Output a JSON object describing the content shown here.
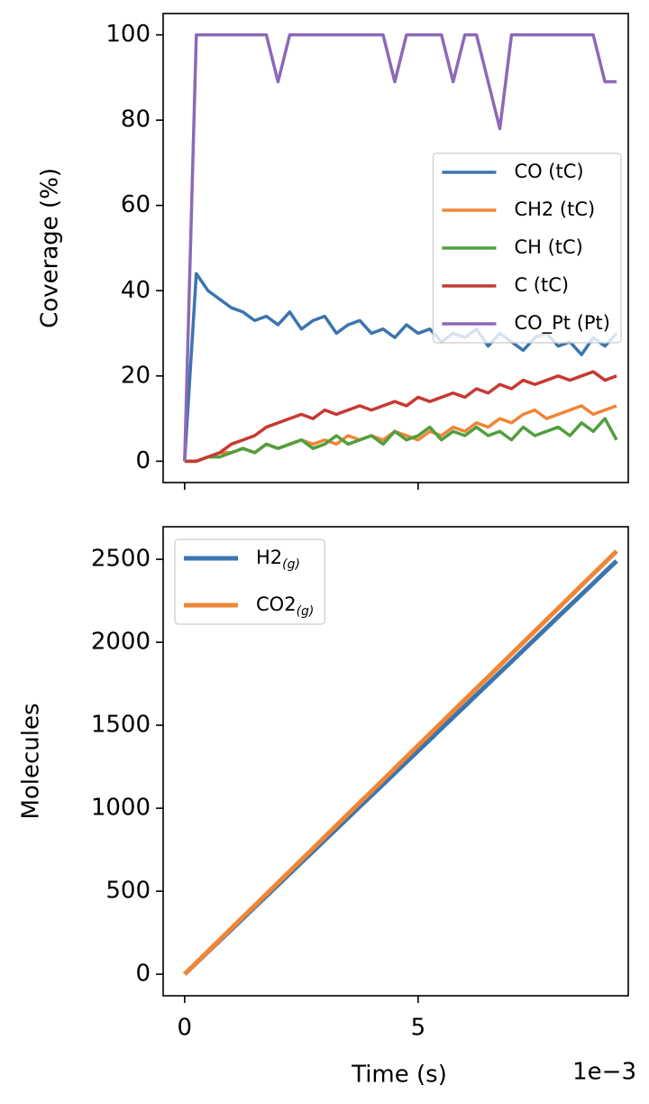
{
  "chart_data": [
    {
      "type": "line",
      "ylabel": "Coverage (%)",
      "x": [
        0,
        0.00025,
        0.0005,
        0.00075,
        0.001,
        0.00125,
        0.0015,
        0.00175,
        0.002,
        0.00225,
        0.0025,
        0.00275,
        0.003,
        0.00325,
        0.0035,
        0.00375,
        0.004,
        0.00425,
        0.0045,
        0.00475,
        0.005,
        0.00525,
        0.0055,
        0.00575,
        0.006,
        0.00625,
        0.0065,
        0.00675,
        0.007,
        0.00725,
        0.0075,
        0.00775,
        0.008,
        0.00825,
        0.0085,
        0.00875,
        0.009,
        0.00925
      ],
      "series": [
        {
          "name": "CO (tC)",
          "color": "#3b75af",
          "values": [
            0,
            44,
            40,
            38,
            36,
            35,
            33,
            34,
            32,
            35,
            31,
            33,
            34,
            30,
            32,
            33,
            30,
            31,
            29,
            32,
            30,
            31,
            28,
            30,
            29,
            31,
            27,
            30,
            28,
            26,
            29,
            30,
            27,
            28,
            25,
            29,
            27,
            30
          ]
        },
        {
          "name": "CH2 (tC)",
          "color": "#ef8636",
          "values": [
            0,
            0,
            1,
            2,
            2,
            3,
            2,
            4,
            3,
            4,
            5,
            4,
            5,
            4,
            6,
            5,
            6,
            5,
            7,
            6,
            5,
            7,
            6,
            8,
            7,
            9,
            8,
            10,
            9,
            11,
            12,
            10,
            11,
            12,
            13,
            11,
            12,
            13
          ]
        },
        {
          "name": "CH (tC)",
          "color": "#519e3e",
          "values": [
            0,
            0,
            1,
            1,
            2,
            3,
            2,
            4,
            3,
            4,
            5,
            3,
            4,
            6,
            4,
            5,
            6,
            4,
            7,
            5,
            6,
            8,
            5,
            7,
            6,
            8,
            6,
            7,
            5,
            8,
            6,
            7,
            8,
            6,
            9,
            7,
            10,
            5
          ]
        },
        {
          "name": "C (tC)",
          "color": "#c53a32",
          "values": [
            0,
            0,
            1,
            2,
            4,
            5,
            6,
            8,
            9,
            10,
            11,
            10,
            12,
            11,
            12,
            13,
            12,
            13,
            14,
            13,
            15,
            14,
            15,
            16,
            15,
            17,
            16,
            18,
            17,
            19,
            18,
            19,
            20,
            19,
            20,
            21,
            19,
            20
          ]
        },
        {
          "name": "CO_Pt (Pt)",
          "color": "#8d69b8",
          "values": [
            0,
            100,
            100,
            100,
            100,
            100,
            100,
            100,
            89,
            100,
            100,
            100,
            100,
            100,
            100,
            100,
            100,
            100,
            89,
            100,
            100,
            100,
            100,
            89,
            100,
            100,
            89,
            78,
            100,
            100,
            100,
            100,
            100,
            100,
            100,
            100,
            89,
            89
          ]
        }
      ],
      "xlim": [
        -0.00046,
        0.0095
      ],
      "xticks": [
        0,
        0.005
      ],
      "ylim": [
        -5,
        105
      ],
      "yticks": [
        0,
        20,
        40,
        60,
        80,
        100
      ],
      "legend": "center right",
      "line_width": 3.5
    },
    {
      "type": "line",
      "xlabel": "Time (s)",
      "ylabel": "Molecules",
      "x_offset_text": "1e−3",
      "x": [
        0,
        0.00025,
        0.0005,
        0.00075,
        0.001,
        0.00125,
        0.0015,
        0.00175,
        0.002,
        0.00225,
        0.0025,
        0.00275,
        0.003,
        0.00325,
        0.0035,
        0.00375,
        0.004,
        0.00425,
        0.0045,
        0.00475,
        0.005,
        0.00525,
        0.0055,
        0.00575,
        0.006,
        0.00625,
        0.0065,
        0.00675,
        0.007,
        0.00725,
        0.0075,
        0.00775,
        0.008,
        0.00825,
        0.0085,
        0.00875,
        0.009,
        0.00925
      ],
      "series": [
        {
          "name": "H2",
          "subscript": "(g)",
          "color": "#3b75af",
          "values": [
            0,
            67,
            135,
            202,
            269,
            336,
            404,
            471,
            538,
            606,
            673,
            740,
            808,
            875,
            942,
            1010,
            1077,
            1144,
            1211,
            1279,
            1346,
            1413,
            1481,
            1548,
            1615,
            1683,
            1750,
            1817,
            1884,
            1952,
            2019,
            2086,
            2154,
            2221,
            2288,
            2355,
            2423,
            2490
          ]
        },
        {
          "name": "CO2",
          "subscript": "(g)",
          "color": "#ef8636",
          "values": [
            0,
            69,
            138,
            207,
            276,
            345,
            413,
            482,
            551,
            620,
            689,
            758,
            827,
            896,
            965,
            1034,
            1102,
            1171,
            1240,
            1309,
            1378,
            1447,
            1516,
            1585,
            1654,
            1723,
            1791,
            1860,
            1929,
            1998,
            2067,
            2136,
            2205,
            2274,
            2343,
            2412,
            2480,
            2549
          ]
        }
      ],
      "xlim": [
        -0.00046,
        0.0095
      ],
      "xticks": [
        0,
        {
          "value": 0.005,
          "label": "5"
        }
      ],
      "ylim": [
        -130,
        2696
      ],
      "yticks": [
        0,
        500,
        1000,
        1500,
        2000,
        2500
      ],
      "legend": "upper left",
      "line_width": 5
    }
  ]
}
